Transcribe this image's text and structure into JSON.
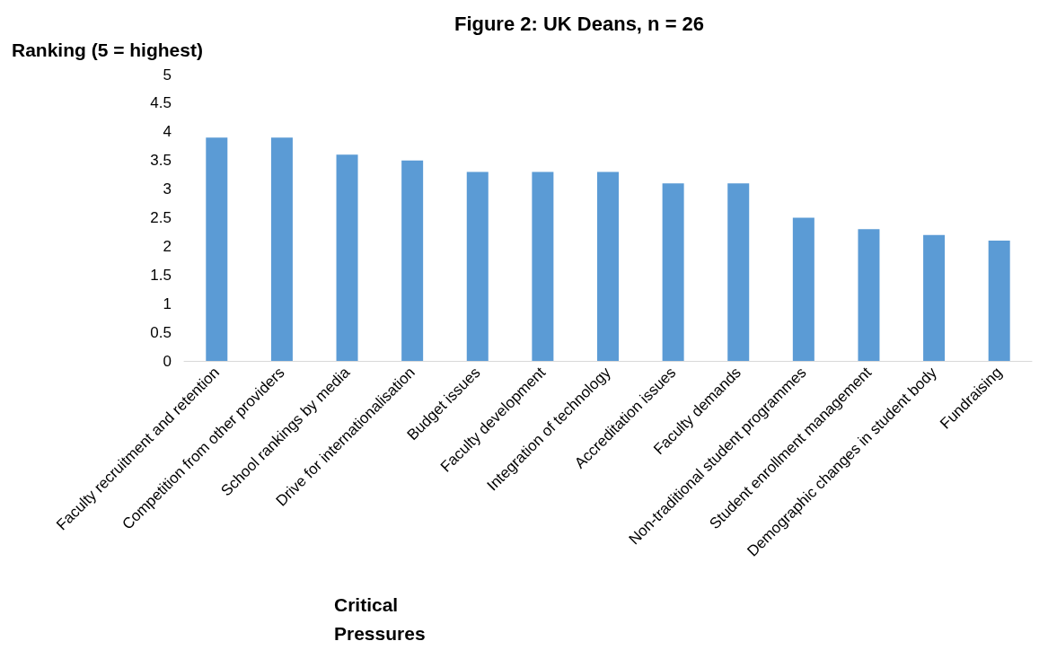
{
  "chart_data": {
    "type": "bar",
    "title": "Figure 2: UK Deans, n = 26",
    "ylabel": "Ranking (5 = highest)",
    "xlabel": "Critical Pressures",
    "categories": [
      "Faculty recruitment and retention",
      "Competition from other providers",
      "School rankings by media",
      "Drive for internationalisation",
      "Budget issues",
      "Faculty development",
      "Integration of technology",
      "Accreditation issues",
      "Faculty demands",
      "Non-traditional student programmes",
      "Student enrollment management",
      "Demographic changes in student body",
      "Fundraising"
    ],
    "values": [
      3.9,
      3.9,
      3.6,
      3.5,
      3.3,
      3.3,
      3.3,
      3.1,
      3.1,
      2.5,
      2.3,
      2.2,
      2.1
    ],
    "color": "#5b9bd5",
    "ylim": [
      0,
      5
    ],
    "yticks": [
      0,
      0.5,
      1,
      1.5,
      2,
      2.5,
      3,
      3.5,
      4,
      4.5,
      5
    ],
    "grid": false
  }
}
